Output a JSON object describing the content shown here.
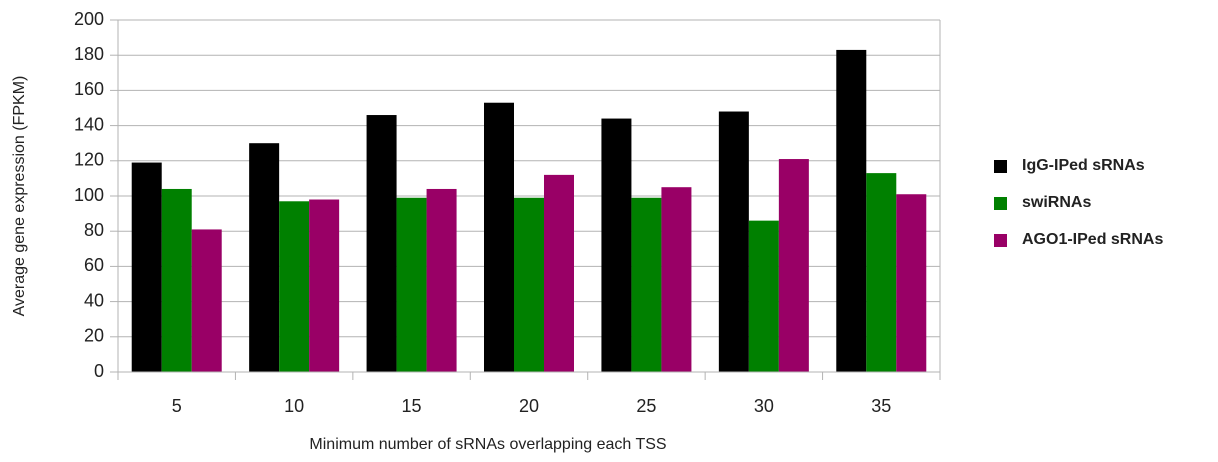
{
  "chart_data": {
    "type": "bar",
    "x_label": "Minimum number of sRNAs overlapping each TSS",
    "y_label": "Average gene expression (FPKM)",
    "categories": [
      "5",
      "10",
      "15",
      "20",
      "25",
      "30",
      "35"
    ],
    "series": [
      {
        "name": "IgG-IPed sRNAs",
        "color": "#000000",
        "values": [
          119,
          130,
          146,
          153,
          144,
          148,
          183
        ]
      },
      {
        "name": "swiRNAs",
        "color": "#008000",
        "values": [
          104,
          97,
          99,
          99,
          99,
          86,
          113
        ]
      },
      {
        "name": "AGO1-IPed sRNAs",
        "color": "#990066",
        "values": [
          81,
          98,
          104,
          112,
          105,
          121,
          101
        ]
      }
    ],
    "ylim": [
      0,
      200
    ],
    "yticks": [
      0,
      20,
      40,
      60,
      80,
      100,
      120,
      140,
      160,
      180,
      200
    ],
    "grid": true,
    "legend": "right"
  }
}
